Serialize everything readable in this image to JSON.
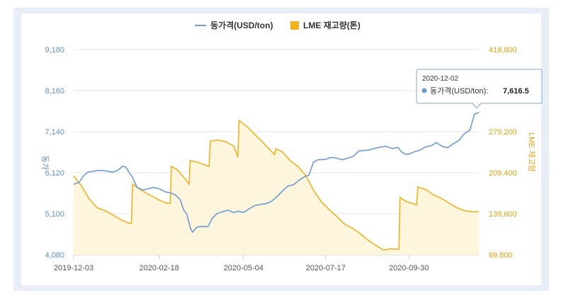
{
  "chart_data": {
    "type": "line",
    "legend_position": "top-center",
    "grid": true,
    "x_ticks": [
      "2019-12-03",
      "2020-02-18",
      "2020-05-04",
      "2020-07-17",
      "2020-09-30"
    ],
    "y_left": {
      "label": "동가",
      "ticks": [
        "4,080",
        "5,100",
        "6,120",
        "7,140",
        "8,160",
        "9,180"
      ],
      "range": [
        4080,
        9180
      ]
    },
    "y_right": {
      "label": "LME 재고량",
      "ticks": [
        "69,800",
        "139,600",
        "209,400",
        "279,200",
        "348,000",
        "418,800"
      ],
      "range": [
        69800,
        418800
      ]
    },
    "series": [
      {
        "name": "동가격(USD/ton)",
        "axis": "left",
        "color": "#6b9bd6",
        "points": [
          [
            "2019-12-03",
            5830
          ],
          [
            "2019-12-08",
            5880
          ],
          [
            "2019-12-12",
            6050
          ],
          [
            "2019-12-16",
            6140
          ],
          [
            "2019-12-20",
            6150
          ],
          [
            "2019-12-26",
            6180
          ],
          [
            "2020-01-02",
            6160
          ],
          [
            "2020-01-07",
            6130
          ],
          [
            "2020-01-12",
            6180
          ],
          [
            "2020-01-16",
            6280
          ],
          [
            "2020-01-19",
            6260
          ],
          [
            "2020-01-22",
            6120
          ],
          [
            "2020-01-25",
            6000
          ],
          [
            "2020-01-29",
            5760
          ],
          [
            "2020-02-03",
            5690
          ],
          [
            "2020-02-08",
            5720
          ],
          [
            "2020-02-13",
            5750
          ],
          [
            "2020-02-18",
            5720
          ],
          [
            "2020-02-24",
            5640
          ],
          [
            "2020-02-28",
            5620
          ],
          [
            "2020-03-04",
            5560
          ],
          [
            "2020-03-08",
            5450
          ],
          [
            "2020-03-11",
            5200
          ],
          [
            "2020-03-14",
            5090
          ],
          [
            "2020-03-17",
            4760
          ],
          [
            "2020-03-19",
            4640
          ],
          [
            "2020-03-23",
            4770
          ],
          [
            "2020-03-28",
            4780
          ],
          [
            "2020-04-02",
            4780
          ],
          [
            "2020-04-06",
            4990
          ],
          [
            "2020-04-10",
            5100
          ],
          [
            "2020-04-15",
            5150
          ],
          [
            "2020-04-20",
            5190
          ],
          [
            "2020-04-25",
            5130
          ],
          [
            "2020-04-30",
            5160
          ],
          [
            "2020-05-04",
            5130
          ],
          [
            "2020-05-09",
            5220
          ],
          [
            "2020-05-14",
            5300
          ],
          [
            "2020-05-19",
            5330
          ],
          [
            "2020-05-24",
            5350
          ],
          [
            "2020-05-29",
            5400
          ],
          [
            "2020-06-03",
            5520
          ],
          [
            "2020-06-08",
            5660
          ],
          [
            "2020-06-13",
            5790
          ],
          [
            "2020-06-18",
            5820
          ],
          [
            "2020-06-23",
            5930
          ],
          [
            "2020-06-28",
            6020
          ],
          [
            "2020-07-02",
            6060
          ],
          [
            "2020-07-06",
            6380
          ],
          [
            "2020-07-10",
            6440
          ],
          [
            "2020-07-17",
            6450
          ],
          [
            "2020-07-22",
            6500
          ],
          [
            "2020-07-27",
            6480
          ],
          [
            "2020-08-01",
            6440
          ],
          [
            "2020-08-06",
            6480
          ],
          [
            "2020-08-11",
            6530
          ],
          [
            "2020-08-16",
            6660
          ],
          [
            "2020-08-21",
            6670
          ],
          [
            "2020-08-26",
            6690
          ],
          [
            "2020-08-31",
            6730
          ],
          [
            "2020-09-05",
            6760
          ],
          [
            "2020-09-10",
            6770
          ],
          [
            "2020-09-15",
            6720
          ],
          [
            "2020-09-20",
            6750
          ],
          [
            "2020-09-24",
            6620
          ],
          [
            "2020-09-28",
            6570
          ],
          [
            "2020-09-30",
            6580
          ],
          [
            "2020-10-05",
            6640
          ],
          [
            "2020-10-10",
            6680
          ],
          [
            "2020-10-15",
            6760
          ],
          [
            "2020-10-20",
            6790
          ],
          [
            "2020-10-25",
            6870
          ],
          [
            "2020-10-30",
            6770
          ],
          [
            "2020-11-04",
            6740
          ],
          [
            "2020-11-09",
            6840
          ],
          [
            "2020-11-14",
            6920
          ],
          [
            "2020-11-19",
            7090
          ],
          [
            "2020-11-24",
            7180
          ],
          [
            "2020-11-28",
            7570
          ],
          [
            "2020-12-02",
            7616.5
          ]
        ]
      },
      {
        "name": "LME 재고량(톤)",
        "axis": "right",
        "color": "#f2b21c",
        "fill": "#fdf5dc",
        "points": [
          [
            "2019-12-03",
            204000
          ],
          [
            "2019-12-10",
            187000
          ],
          [
            "2019-12-17",
            165000
          ],
          [
            "2019-12-24",
            150000
          ],
          [
            "2019-12-31",
            145000
          ],
          [
            "2020-01-07",
            138000
          ],
          [
            "2020-01-14",
            130000
          ],
          [
            "2020-01-21",
            124000
          ],
          [
            "2020-01-24",
            123000
          ],
          [
            "2020-01-25",
            190000
          ],
          [
            "2020-01-30",
            183000
          ],
          [
            "2020-02-06",
            175000
          ],
          [
            "2020-02-13",
            168000
          ],
          [
            "2020-02-18",
            163000
          ],
          [
            "2020-02-24",
            158000
          ],
          [
            "2020-02-28",
            157000
          ],
          [
            "2020-02-29",
            220000
          ],
          [
            "2020-03-05",
            215000
          ],
          [
            "2020-03-12",
            200000
          ],
          [
            "2020-03-16",
            190000
          ],
          [
            "2020-03-17",
            230000
          ],
          [
            "2020-03-24",
            227000
          ],
          [
            "2020-03-31",
            222000
          ],
          [
            "2020-04-03",
            220000
          ],
          [
            "2020-04-04",
            263000
          ],
          [
            "2020-04-11",
            265000
          ],
          [
            "2020-04-18",
            262000
          ],
          [
            "2020-04-25",
            255000
          ],
          [
            "2020-04-29",
            236000
          ],
          [
            "2020-04-30",
            298000
          ],
          [
            "2020-05-07",
            288000
          ],
          [
            "2020-05-14",
            275000
          ],
          [
            "2020-05-21",
            262000
          ],
          [
            "2020-05-28",
            248000
          ],
          [
            "2020-06-01",
            240000
          ],
          [
            "2020-06-02",
            250000
          ],
          [
            "2020-06-08",
            245000
          ],
          [
            "2020-06-15",
            230000
          ],
          [
            "2020-06-22",
            220000
          ],
          [
            "2020-06-29",
            205000
          ],
          [
            "2020-07-06",
            180000
          ],
          [
            "2020-07-13",
            160000
          ],
          [
            "2020-07-20",
            147000
          ],
          [
            "2020-07-27",
            135000
          ],
          [
            "2020-08-03",
            122000
          ],
          [
            "2020-08-10",
            115000
          ],
          [
            "2020-08-17",
            106000
          ],
          [
            "2020-08-24",
            95000
          ],
          [
            "2020-08-31",
            86000
          ],
          [
            "2020-09-07",
            78000
          ],
          [
            "2020-09-14",
            80000
          ],
          [
            "2020-09-21",
            79000
          ],
          [
            "2020-09-22",
            167000
          ],
          [
            "2020-09-28",
            160000
          ],
          [
            "2020-10-03",
            157000
          ],
          [
            "2020-10-07",
            155000
          ],
          [
            "2020-10-08",
            185000
          ],
          [
            "2020-10-15",
            181000
          ],
          [
            "2020-10-22",
            172000
          ],
          [
            "2020-10-29",
            166000
          ],
          [
            "2020-11-05",
            158000
          ],
          [
            "2020-11-12",
            150000
          ],
          [
            "2020-11-19",
            145000
          ],
          [
            "2020-11-26",
            143000
          ],
          [
            "2020-12-02",
            143000
          ]
        ]
      }
    ],
    "tooltip": {
      "date": "2020-12-02",
      "label": "동가격(USD/ton):",
      "value": "7,616.5"
    }
  }
}
